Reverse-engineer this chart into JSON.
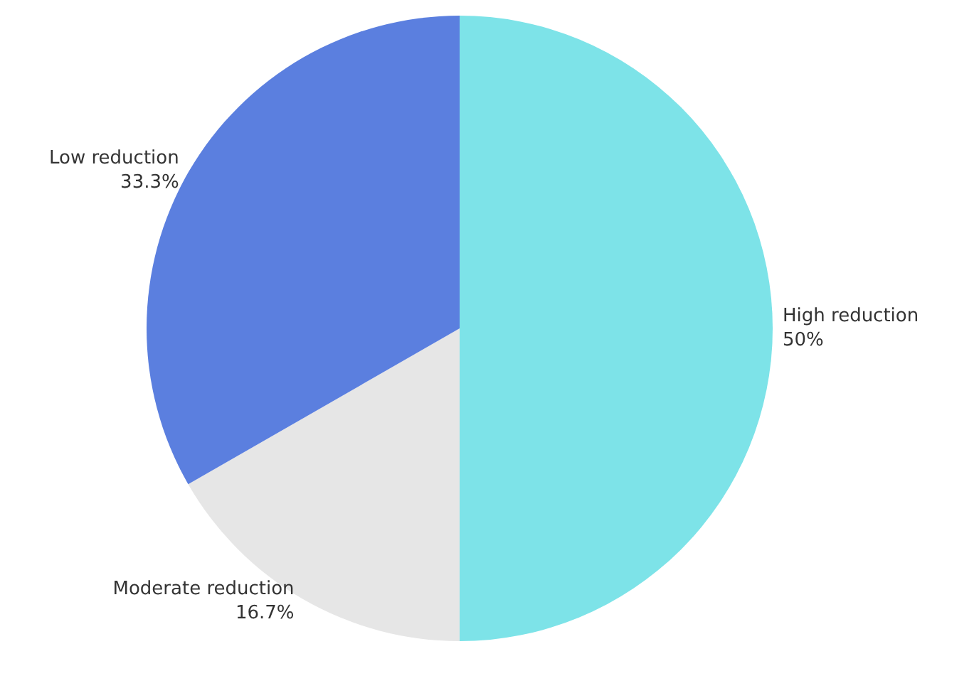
{
  "chart_data": {
    "type": "pie",
    "categories": [
      "High reduction",
      "Moderate reduction",
      "Low reduction"
    ],
    "values": [
      50,
      16.7,
      33.3
    ],
    "value_labels": [
      "50%",
      "16.7%",
      "33.3%"
    ],
    "colors": [
      "#7de3e8",
      "#e6e6e6",
      "#5b7fdf"
    ],
    "legend": false
  }
}
